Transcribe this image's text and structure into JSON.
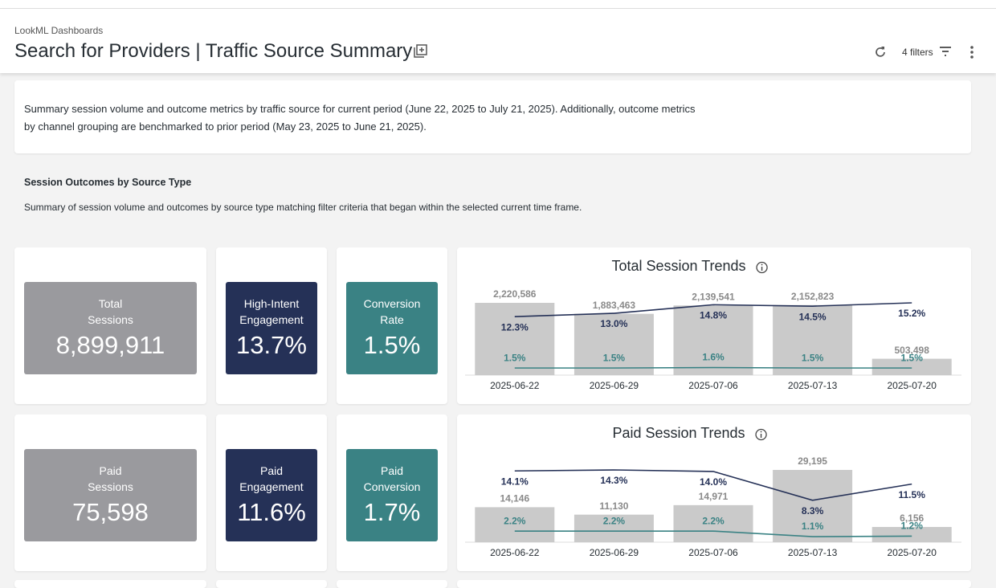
{
  "header": {
    "breadcrumb": "LookML Dashboards",
    "title": "Search for Providers | Traffic Source Summary",
    "filters": "4 filters"
  },
  "intro": {
    "lines": [
      "Summary session volume and outcome metrics by traffic source for current period (June 22, 2025 to July 21, 2025). Additionally, outcome metrics",
      "by channel grouping are benchmarked to prior period (May 23, 2025 to June 21, 2025)."
    ]
  },
  "section": {
    "title": "Session Outcomes by Source Type",
    "description": "Summary of session volume and outcomes by source type matching filter criteria that began within the selected current time frame."
  },
  "tiles": [
    [
      {
        "label": "Total Sessions",
        "value": "8,899,911",
        "color": "#9a9a9e"
      },
      {
        "label": "High-Intent Engagement",
        "value": "13.7%",
        "color": "#253157"
      },
      {
        "label": "Conversion Rate",
        "value": "1.5%",
        "color": "#3a8284"
      }
    ],
    [
      {
        "label": "Paid Sessions",
        "value": "75,598",
        "color": "#9a9a9e"
      },
      {
        "label": "Paid Engagement",
        "value": "11.6%",
        "color": "#253157"
      },
      {
        "label": "Paid Conversion",
        "value": "1.7%",
        "color": "#3a8284"
      }
    ]
  ],
  "charts": [
    {
      "type": "bar",
      "title": "Total Session Trends",
      "categories": [
        "2025-06-22",
        "2025-06-29",
        "2025-07-06",
        "2025-07-13",
        "2025-07-20"
      ],
      "series": [
        {
          "type": "bar",
          "color": "#cacaca",
          "values": [
            2220586,
            1883463,
            2139541,
            2152823,
            503498
          ],
          "value_labels": [
            "2,220,586",
            "1,883,463",
            "2,139,541",
            "2,152,823",
            "503,498"
          ]
        },
        {
          "type": "line",
          "color": "#253157",
          "label_position": "below",
          "values": [
            12.3,
            13.0,
            14.8,
            14.5,
            15.2
          ],
          "value_labels": [
            "12.3%",
            "13.0%",
            "14.8%",
            "14.5%",
            "15.2%"
          ]
        },
        {
          "type": "line",
          "color": "#3a8284",
          "label_position": "above",
          "values": [
            1.5,
            1.5,
            1.6,
            1.5,
            1.5
          ],
          "value_labels": [
            "1.5%",
            "1.5%",
            "1.6%",
            "1.5%",
            "1.5%"
          ]
        }
      ]
    },
    {
      "type": "bar",
      "title": "Paid Session Trends",
      "categories": [
        "2025-06-22",
        "2025-06-29",
        "2025-07-06",
        "2025-07-13",
        "2025-07-20"
      ],
      "series": [
        {
          "type": "bar",
          "color": "#cacaca",
          "values": [
            14146,
            11130,
            14971,
            29195,
            6156
          ],
          "value_labels": [
            "14,146",
            "11,130",
            "14,971",
            "29,195",
            "6,156"
          ]
        },
        {
          "type": "line",
          "color": "#253157",
          "label_position": "below",
          "values": [
            14.1,
            14.3,
            14.0,
            8.3,
            11.5
          ],
          "value_labels": [
            "14.1%",
            "14.3%",
            "14.0%",
            "8.3%",
            "11.5%"
          ]
        },
        {
          "type": "line",
          "color": "#3a8284",
          "label_position": "above",
          "values": [
            2.2,
            2.2,
            2.2,
            1.1,
            1.2
          ],
          "value_labels": [
            "2.2%",
            "2.2%",
            "2.2%",
            "1.1%",
            "1.2%"
          ]
        }
      ]
    }
  ]
}
